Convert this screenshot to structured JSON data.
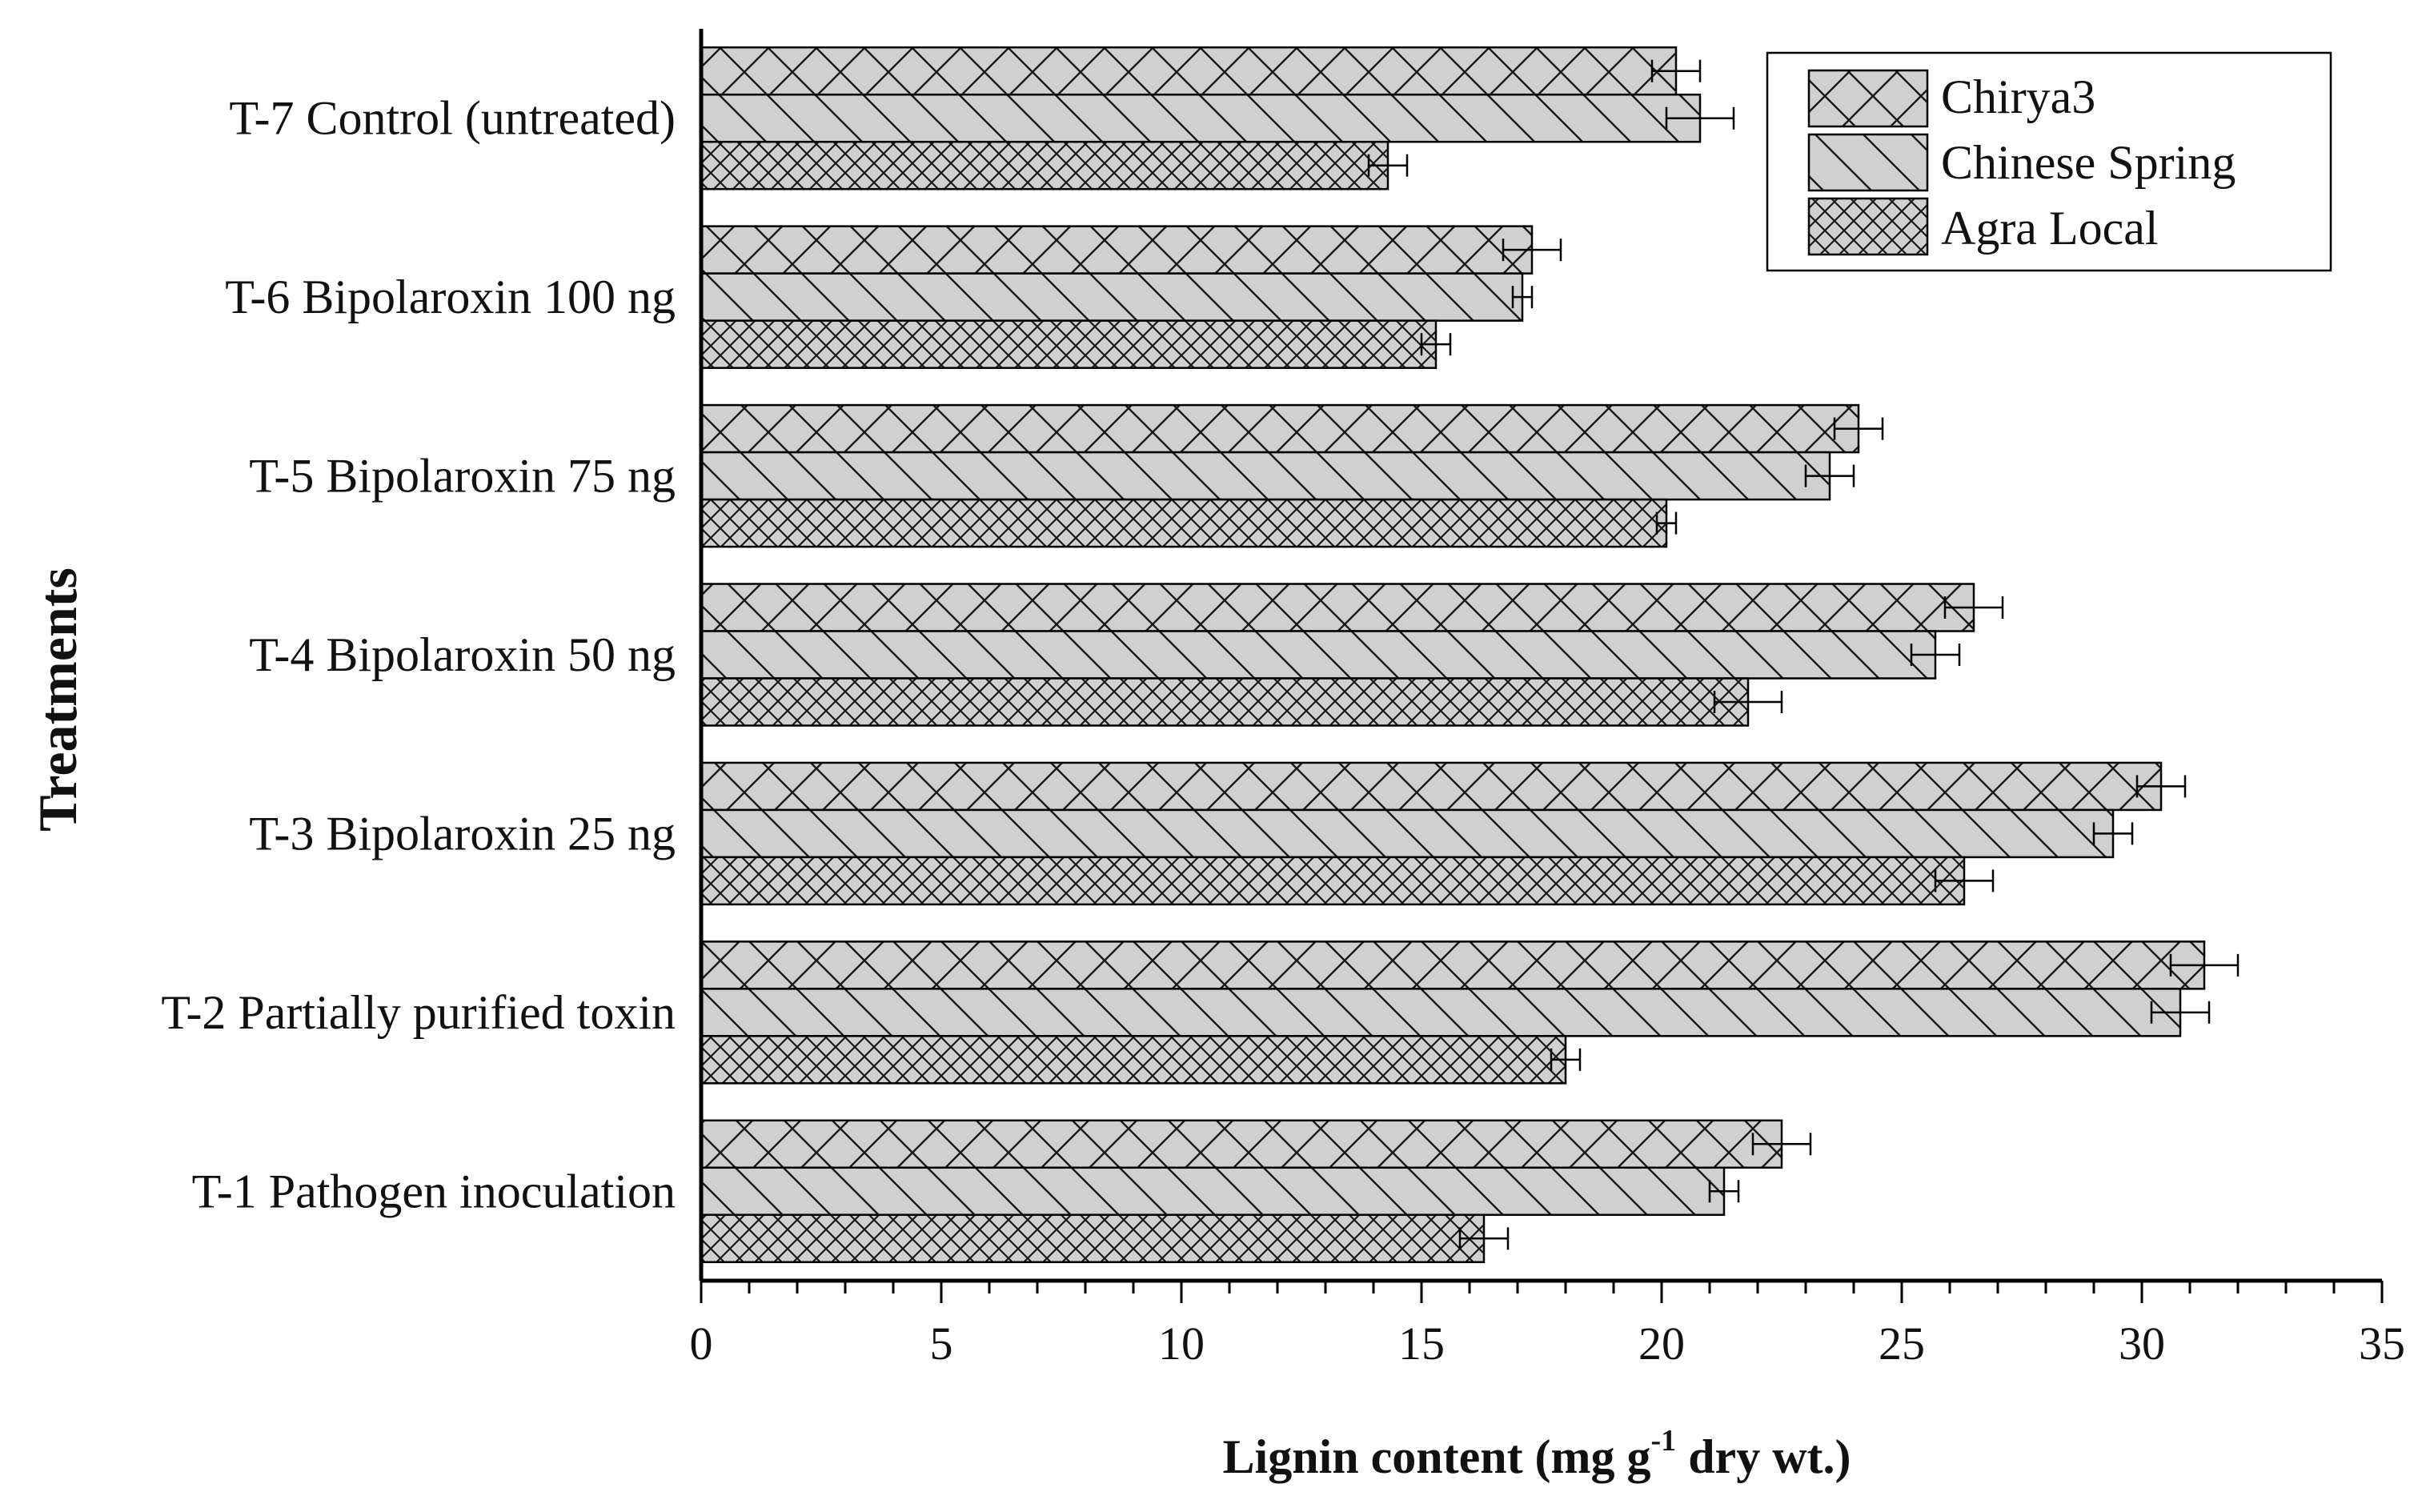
{
  "chart_data": {
    "type": "bar",
    "orientation": "horizontal",
    "title": "",
    "xlabel": "Lignin content (mg g-1 dry wt.)",
    "xlabel_main": "Lignin content (mg g",
    "xlabel_sup": "-1",
    "xlabel_tail": " dry wt.)",
    "ylabel": "Treatments",
    "xlim": [
      0,
      35
    ],
    "xticks": [
      "0",
      "5",
      "10",
      "15",
      "20",
      "25",
      "30",
      "35"
    ],
    "categories": [
      "T-1 Pathogen inoculation",
      "T-2 Partially purified toxin",
      "T-3 Bipolaroxin 25 ng",
      "T-4 Bipolaroxin 50 ng",
      "T-5 Bipolaroxin 75 ng",
      "T-6 Bipolaroxin 100 ng",
      "T-7 Control (untreated)"
    ],
    "series": [
      {
        "name": "Chirya3",
        "pattern": "crosshatch",
        "values": [
          22.5,
          31.3,
          30.4,
          26.5,
          24.1,
          17.3,
          20.3
        ],
        "errors": [
          0.6,
          0.7,
          0.5,
          0.6,
          0.5,
          0.6,
          0.5
        ]
      },
      {
        "name": "Chinese Spring",
        "pattern": "back-diagonal",
        "values": [
          21.3,
          30.8,
          29.4,
          25.7,
          23.5,
          17.1,
          20.8
        ],
        "errors": [
          0.3,
          0.6,
          0.4,
          0.5,
          0.5,
          0.2,
          0.7
        ]
      },
      {
        "name": "Agra Local",
        "pattern": "dense-crosshatch",
        "values": [
          16.3,
          18.0,
          26.3,
          21.8,
          20.1,
          15.3,
          14.3
        ],
        "errors": [
          0.5,
          0.3,
          0.6,
          0.7,
          0.2,
          0.3,
          0.4
        ]
      }
    ],
    "legend_position": "top-right",
    "grid": false
  },
  "colors": {
    "bar_fill": "#d0d0d0",
    "hatch": "#1a1a1a",
    "axis": "#000000"
  }
}
